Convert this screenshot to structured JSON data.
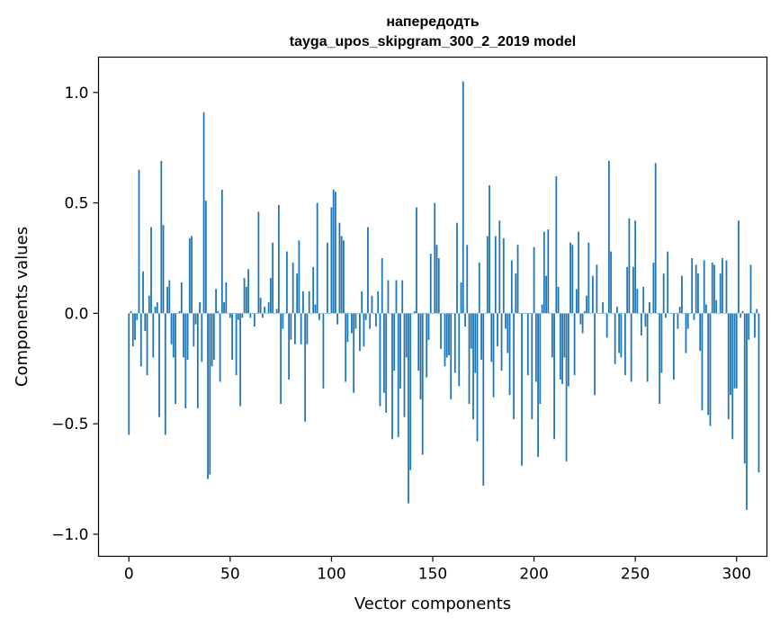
{
  "chart_data": {
    "type": "bar",
    "title": "напередодть",
    "subtitle": "tayga_upos_skipgram_300_2_2019 model",
    "xlabel": "Vector components",
    "ylabel": "Components values",
    "xlim": [
      -15,
      315
    ],
    "ylim": [
      -1.1,
      1.16
    ],
    "xticks": [
      0,
      50,
      100,
      150,
      200,
      250,
      300
    ],
    "yticks": [
      1.0,
      0.5,
      0.0,
      -0.5,
      -1.0
    ],
    "xtick_labels": [
      "0",
      "50",
      "100",
      "150",
      "200",
      "250",
      "300"
    ],
    "ytick_labels": [
      "1.0",
      "0.5",
      "0.0",
      "−0.5",
      "−1.0"
    ],
    "grid": false,
    "bar_color": "#1f77b4",
    "values": [
      -0.55,
      0.01,
      -0.15,
      -0.12,
      -0.03,
      0.65,
      -0.24,
      0.19,
      -0.08,
      -0.28,
      0.08,
      0.39,
      -0.2,
      0.03,
      0.05,
      -0.47,
      0.69,
      0.4,
      -0.55,
      0.12,
      0.15,
      -0.14,
      -0.2,
      -0.41,
      0.0,
      0.01,
      0.14,
      -0.2,
      -0.43,
      -0.21,
      0.34,
      0.35,
      -0.15,
      -0.05,
      -0.43,
      0.05,
      -0.22,
      0.91,
      0.51,
      -0.75,
      -0.73,
      -0.24,
      -0.21,
      0.11,
      0.01,
      -0.31,
      0.56,
      0.05,
      0.14,
      0.0,
      -0.02,
      -0.21,
      0.0,
      -0.28,
      -0.03,
      -0.42,
      -0.02,
      0.16,
      0.12,
      0.2,
      -0.02,
      0.0,
      -0.06,
      0.0,
      0.46,
      0.07,
      -0.02,
      0.03,
      0.0,
      0.05,
      0.16,
      0.32,
      0.0,
      0.02,
      0.49,
      -0.41,
      -0.07,
      0.0,
      0.28,
      -0.3,
      -0.12,
      0.23,
      -0.14,
      0.18,
      0.33,
      -0.14,
      0.1,
      -0.49,
      -0.14,
      0.1,
      0.0,
      0.21,
      0.04,
      0.5,
      -0.03,
      0.0,
      -0.34,
      0.0,
      0.32,
      0.0,
      0.48,
      0.56,
      0.55,
      -0.05,
      0.41,
      0.35,
      0.33,
      -0.31,
      -0.13,
      0.0,
      -0.09,
      -0.36,
      -0.07,
      0.0,
      -0.17,
      0.1,
      -0.15,
      -0.03,
      0.39,
      -0.07,
      0.08,
      0.0,
      -0.06,
      0.1,
      -0.42,
      0.25,
      -0.36,
      -0.45,
      0.15,
      0.0,
      -0.57,
      -0.26,
      0.15,
      -0.56,
      -0.34,
      0.15,
      -0.47,
      -0.2,
      -0.86,
      -0.71,
      0.0,
      0.01,
      0.48,
      -0.26,
      -0.39,
      -0.64,
      0.0,
      -0.29,
      -0.12,
      0.27,
      0.0,
      0.5,
      0.31,
      0.25,
      -0.16,
      0.0,
      -0.24,
      -0.2,
      -0.19,
      -0.39,
      0.0,
      -0.27,
      0.41,
      -0.33,
      0.14,
      1.05,
      -0.06,
      0.31,
      -0.41,
      -0.16,
      -0.48,
      -0.27,
      -0.58,
      0.23,
      -0.21,
      -0.78,
      0.0,
      0.35,
      0.58,
      -0.22,
      -0.38,
      0.35,
      -0.15,
      0.42,
      -0.26,
      0.34,
      -0.07,
      -0.18,
      -0.37,
      0.24,
      -0.48,
      0.18,
      0.31,
      0.0,
      -0.69,
      0.0,
      0.0,
      -0.28,
      0.0,
      -0.48,
      0.3,
      -0.31,
      -0.65,
      -0.41,
      0.04,
      0.37,
      0.17,
      0.38,
      0.0,
      -0.2,
      -0.57,
      0.62,
      0.12,
      -0.3,
      -0.32,
      -0.2,
      -0.67,
      -0.33,
      0.32,
      0.31,
      -0.28,
      0.11,
      0.37,
      -0.05,
      -0.09,
      0.01,
      0.08,
      0.32,
      0.0,
      0.17,
      -0.37,
      0.22,
      0.0,
      0.0,
      0.05,
      0.0,
      -0.11,
      0.69,
      0.28,
      0.0,
      -0.23,
      0.03,
      -0.18,
      -0.2,
      0.0,
      -0.28,
      0.21,
      0.43,
      -0.31,
      0.21,
      0.42,
      0.11,
      0.0,
      -0.1,
      0.12,
      -0.06,
      -0.31,
      0.05,
      0.0,
      0.23,
      0.68,
      0.0,
      -0.41,
      -0.27,
      0.18,
      -0.02,
      0.28,
      0.0,
      0.0,
      -0.3,
      0.0,
      -0.07,
      0.03,
      0.17,
      0.0,
      -0.18,
      -0.07,
      0.0,
      0.25,
      -0.03,
      0.22,
      0.18,
      -0.17,
      -0.44,
      0.24,
      0.04,
      -0.46,
      -0.51,
      0.23,
      0.22,
      0.06,
      0.0,
      0.18,
      0.25,
      0.0,
      0.24,
      -0.48,
      -0.37,
      -0.57,
      -0.34,
      -0.34,
      0.42,
      -0.02,
      0.01,
      -0.68,
      -0.89,
      -0.12,
      0.22,
      0.0,
      -0.11,
      0.02,
      -0.72
    ]
  }
}
